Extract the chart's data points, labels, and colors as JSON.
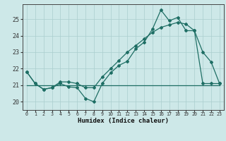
{
  "xlabel": "Humidex (Indice chaleur)",
  "bg_color": "#cde8e8",
  "grid_color": "#aacece",
  "line_color": "#1e6e64",
  "x_ticks": [
    0,
    1,
    2,
    3,
    4,
    5,
    6,
    7,
    8,
    9,
    10,
    11,
    12,
    13,
    14,
    15,
    16,
    17,
    18,
    19,
    20,
    21,
    22,
    23
  ],
  "y_ticks": [
    20,
    21,
    22,
    23,
    24,
    25
  ],
  "xlim": [
    -0.5,
    23.5
  ],
  "ylim": [
    19.5,
    25.9
  ],
  "flat_line_x": [
    0,
    23
  ],
  "flat_line_y": [
    21.0,
    21.0
  ],
  "jagged_x": [
    0,
    1,
    2,
    3,
    4,
    5,
    6,
    7,
    8,
    9,
    10,
    11,
    12,
    13,
    14,
    15,
    16,
    17,
    18,
    19,
    20,
    21,
    22,
    23
  ],
  "jagged_y": [
    21.8,
    21.1,
    20.75,
    20.85,
    21.1,
    20.9,
    20.85,
    20.2,
    20.0,
    21.1,
    21.75,
    22.2,
    22.45,
    23.2,
    23.6,
    24.4,
    25.55,
    24.9,
    25.1,
    24.3,
    24.3,
    23.0,
    22.4,
    21.1
  ],
  "trend_x": [
    0,
    1,
    2,
    3,
    4,
    5,
    6,
    7,
    8,
    9,
    10,
    11,
    12,
    13,
    14,
    15,
    16,
    17,
    18,
    19,
    20,
    21,
    22,
    23
  ],
  "trend_y": [
    21.8,
    21.1,
    20.75,
    20.85,
    21.2,
    21.2,
    21.1,
    20.85,
    20.85,
    21.5,
    22.0,
    22.5,
    23.0,
    23.4,
    23.8,
    24.2,
    24.5,
    24.65,
    24.8,
    24.7,
    24.3,
    21.1,
    21.1,
    21.1
  ]
}
